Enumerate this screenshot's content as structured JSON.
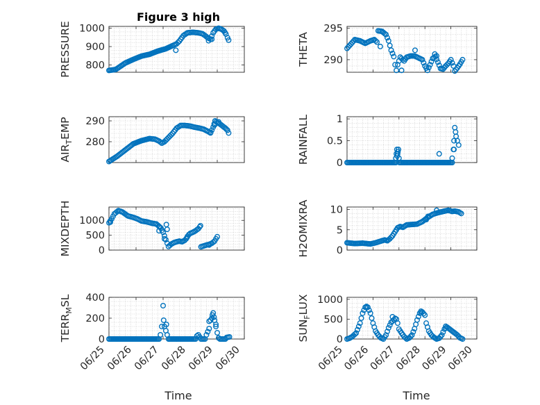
{
  "figure": {
    "title": "Figure 3 high",
    "marker_color": "#0072BD",
    "x_axis": {
      "label": "Time",
      "ticks": [
        "06/25",
        "06/26",
        "06/27",
        "06/28",
        "06/29",
        "06/30"
      ]
    }
  },
  "chart_data": [
    {
      "type": "scatter",
      "name": "PRESSURE",
      "ylabel": "PRESSURE",
      "xlim": [
        0,
        5
      ],
      "ylim": [
        760,
        1010
      ],
      "yticks": [
        800,
        900,
        1000
      ],
      "ytick_labels": [
        "800",
        "900",
        "1000"
      ],
      "keypoints": [
        [
          0,
          770
        ],
        [
          0.25,
          775
        ],
        [
          0.4,
          790
        ],
        [
          0.6,
          810
        ],
        [
          0.9,
          830
        ],
        [
          1.2,
          848
        ],
        [
          1.5,
          858
        ],
        [
          1.8,
          875
        ],
        [
          2.1,
          888
        ],
        [
          2.35,
          905
        ],
        [
          2.5,
          915
        ],
        [
          2.6,
          930
        ],
        [
          2.75,
          960
        ],
        [
          2.9,
          975
        ],
        [
          3.1,
          978
        ],
        [
          3.3,
          975
        ],
        [
          3.45,
          970
        ],
        [
          3.55,
          960
        ],
        [
          3.65,
          948
        ],
        [
          3.75,
          940
        ],
        [
          3.85,
          975
        ],
        [
          3.95,
          995
        ],
        [
          4.05,
          1000
        ],
        [
          4.15,
          995
        ],
        [
          4.25,
          985
        ],
        [
          4.32,
          968
        ],
        [
          4.38,
          948
        ],
        [
          4.42,
          935
        ]
      ],
      "extra_points": [
        [
          2.47,
          880
        ],
        [
          3.68,
          932
        ],
        [
          3.8,
          940
        ]
      ]
    },
    {
      "type": "scatter",
      "name": "THETA",
      "ylabel": "THETA",
      "xlim": [
        0,
        5
      ],
      "ylim": [
        288,
        295.3
      ],
      "yticks": [
        290,
        295
      ],
      "ytick_labels": [
        "290",
        "295"
      ],
      "keypoints": [
        [
          0,
          291.8
        ],
        [
          0.15,
          292.5
        ],
        [
          0.3,
          293.2
        ],
        [
          0.5,
          293
        ],
        [
          0.7,
          292.6
        ],
        [
          0.9,
          293
        ],
        [
          1.05,
          293.2
        ],
        [
          1.15,
          292.8
        ],
        [
          1.2,
          294.6
        ],
        [
          1.35,
          294.5
        ],
        [
          1.5,
          294
        ],
        [
          1.6,
          293
        ],
        [
          1.7,
          291.5
        ],
        [
          1.8,
          290.5
        ],
        [
          1.85,
          289.2
        ],
        [
          1.9,
          288.3
        ],
        [
          1.95,
          289.2
        ],
        [
          2.05,
          290.4
        ],
        [
          2.2,
          289.8
        ],
        [
          2.3,
          290.4
        ],
        [
          2.45,
          290.6
        ],
        [
          2.6,
          290.6
        ],
        [
          2.75,
          290.3
        ],
        [
          2.9,
          290
        ],
        [
          3.0,
          289
        ],
        [
          3.1,
          288.3
        ],
        [
          3.2,
          289.2
        ],
        [
          3.3,
          290.2
        ],
        [
          3.4,
          290.5
        ],
        [
          3.5,
          289.6
        ],
        [
          3.6,
          288.6
        ],
        [
          3.7,
          288.5
        ],
        [
          3.8,
          289
        ],
        [
          3.9,
          289.4
        ],
        [
          4.0,
          290
        ],
        [
          4.1,
          289
        ],
        [
          4.15,
          288.2
        ],
        [
          4.25,
          288.7
        ],
        [
          4.35,
          289.3
        ],
        [
          4.45,
          290
        ]
      ],
      "extra_points": [
        [
          1.28,
          292.1
        ],
        [
          2.1,
          288.3
        ],
        [
          2.62,
          291.5
        ],
        [
          3.38,
          290.9
        ],
        [
          3.45,
          290.6
        ]
      ]
    },
    {
      "type": "scatter",
      "name": "AIR_TEMP",
      "ylabel": "AIR_TEMP",
      "xlim": [
        0,
        5
      ],
      "ylim": [
        270,
        292
      ],
      "yticks": [
        280,
        290
      ],
      "ytick_labels": [
        "280",
        "290"
      ],
      "keypoints": [
        [
          0,
          270.5
        ],
        [
          0.3,
          273
        ],
        [
          0.6,
          276
        ],
        [
          0.9,
          279
        ],
        [
          1.2,
          280.5
        ],
        [
          1.5,
          281.5
        ],
        [
          1.7,
          281.2
        ],
        [
          1.85,
          280.3
        ],
        [
          1.95,
          279.3
        ],
        [
          2.05,
          280
        ],
        [
          2.2,
          282
        ],
        [
          2.35,
          284
        ],
        [
          2.5,
          286.5
        ],
        [
          2.65,
          287.8
        ],
        [
          2.8,
          287.8
        ],
        [
          3.0,
          287.5
        ],
        [
          3.15,
          287
        ],
        [
          3.35,
          286.5
        ],
        [
          3.5,
          286
        ],
        [
          3.65,
          285
        ],
        [
          3.75,
          284.2
        ],
        [
          3.85,
          287
        ],
        [
          3.92,
          290
        ],
        [
          4.0,
          289.2
        ],
        [
          4.1,
          288.5
        ],
        [
          4.2,
          287.5
        ],
        [
          4.3,
          286.5
        ],
        [
          4.38,
          285.5
        ],
        [
          4.42,
          284.2
        ]
      ],
      "extra_points": [
        [
          3.76,
          284.5
        ],
        [
          3.9,
          288
        ],
        [
          4.05,
          289.5
        ]
      ]
    },
    {
      "type": "scatter",
      "name": "MIXDEPTH",
      "ylabel": "MIXDEPTH",
      "xlim": [
        0,
        5
      ],
      "ylim": [
        0,
        1450
      ],
      "yticks": [
        0,
        500,
        1000
      ],
      "ytick_labels": [
        "0",
        "500",
        "1000"
      ],
      "keypoints": [
        [
          0,
          920
        ],
        [
          0.1,
          1050
        ],
        [
          0.2,
          1220
        ],
        [
          0.35,
          1330
        ],
        [
          0.5,
          1280
        ],
        [
          0.7,
          1150
        ],
        [
          0.9,
          1100
        ],
        [
          1.05,
          1050
        ],
        [
          1.2,
          980
        ],
        [
          1.4,
          950
        ],
        [
          1.6,
          900
        ],
        [
          1.75,
          880
        ],
        [
          1.85,
          800
        ],
        [
          1.92,
          740
        ],
        [
          2.0,
          600
        ],
        [
          2.05,
          480
        ],
        [
          2.1,
          350
        ],
        [
          2.15,
          230
        ],
        [
          2.2,
          120
        ],
        [
          2.3,
          200
        ],
        [
          2.4,
          250
        ],
        [
          2.5,
          280
        ],
        [
          2.6,
          300
        ],
        [
          2.7,
          280
        ],
        [
          2.8,
          330
        ],
        [
          2.85,
          380
        ],
        [
          2.88,
          420
        ],
        [
          2.9,
          460
        ],
        [
          2.95,
          520
        ],
        [
          3.0,
          560
        ],
        [
          3.1,
          600
        ],
        [
          3.2,
          650
        ],
        [
          3.3,
          720
        ],
        [
          3.35,
          780
        ],
        [
          3.38,
          820
        ],
        [
          3.4,
          110
        ],
        [
          3.5,
          140
        ],
        [
          3.6,
          170
        ],
        [
          3.7,
          190
        ],
        [
          3.8,
          230
        ],
        [
          3.9,
          300
        ],
        [
          3.95,
          380
        ],
        [
          4.0,
          450
        ]
      ],
      "extra_points": [
        [
          0.05,
          940
        ],
        [
          2.12,
          860
        ],
        [
          2.15,
          700
        ],
        [
          2.05,
          380
        ],
        [
          1.85,
          650
        ],
        [
          3.7,
          170
        ]
      ]
    },
    {
      "type": "scatter",
      "name": "H2OMIXRA",
      "ylabel": "H2OMIXRA",
      "xlim": [
        0,
        5
      ],
      "ylim": [
        0,
        10.6
      ],
      "yticks": [
        0,
        5,
        10
      ],
      "ytick_labels": [
        "0",
        "5",
        "10"
      ],
      "keypoints": [
        [
          0,
          1.8
        ],
        [
          0.3,
          1.6
        ],
        [
          0.6,
          1.7
        ],
        [
          0.9,
          1.5
        ],
        [
          1.1,
          1.8
        ],
        [
          1.3,
          2.2
        ],
        [
          1.45,
          2.5
        ],
        [
          1.55,
          2.3
        ],
        [
          1.65,
          2.8
        ],
        [
          1.75,
          3.5
        ],
        [
          1.85,
          4.5
        ],
        [
          1.95,
          5.5
        ],
        [
          2.05,
          5.8
        ],
        [
          2.15,
          5.6
        ],
        [
          2.3,
          6.2
        ],
        [
          2.5,
          6.3
        ],
        [
          2.7,
          6.4
        ],
        [
          2.9,
          7.0
        ],
        [
          3.1,
          8.0
        ],
        [
          3.3,
          8.8
        ],
        [
          3.5,
          9.2
        ],
        [
          3.7,
          9.5
        ],
        [
          3.9,
          9.8
        ],
        [
          4.05,
          9.5
        ],
        [
          4.15,
          9.6
        ],
        [
          4.3,
          9.4
        ],
        [
          4.4,
          9.0
        ]
      ],
      "extra_points": [
        [
          3.05,
          7.5
        ],
        [
          3.12,
          8.3
        ],
        [
          3.45,
          9.8
        ],
        [
          3.75,
          9.6
        ]
      ]
    },
    {
      "type": "scatter",
      "name": "RAINFALL",
      "ylabel": "RAINFALL",
      "xlim": [
        0,
        5
      ],
      "ylim": [
        0,
        1.05
      ],
      "yticks": [
        0,
        0.5,
        1
      ],
      "ytick_labels": [
        "0",
        "0.5",
        "1"
      ],
      "keypoints": [
        [
          0,
          0
        ],
        [
          1.88,
          0
        ],
        [
          1.88,
          0.1
        ],
        [
          1.9,
          0.2
        ],
        [
          1.92,
          0.3
        ],
        [
          1.95,
          0.2
        ],
        [
          1.98,
          0.3
        ],
        [
          2.0,
          0.1
        ],
        [
          2.02,
          0
        ],
        [
          4.05,
          0
        ],
        [
          4.05,
          0.1
        ],
        [
          4.1,
          0.3
        ],
        [
          4.12,
          0.5
        ],
        [
          4.15,
          0.8
        ],
        [
          4.18,
          0.7
        ],
        [
          4.2,
          0.6
        ],
        [
          4.25,
          0.5
        ],
        [
          4.3,
          0.4
        ]
      ],
      "extra_points": [
        [
          3.55,
          0.2
        ],
        [
          1.93,
          0.15
        ],
        [
          1.96,
          0.25
        ],
        [
          4.12,
          0.3
        ]
      ]
    },
    {
      "type": "scatter",
      "name": "TERR_MSL",
      "ylabel": "TERR_MSL",
      "xlim": [
        0,
        5
      ],
      "ylim": [
        0,
        400
      ],
      "yticks": [
        0,
        200,
        400
      ],
      "ytick_labels": [
        "0",
        "200",
        "400"
      ],
      "keypoints": [
        [
          0,
          0
        ],
        [
          1.85,
          0
        ],
        [
          1.9,
          40
        ],
        [
          1.95,
          120
        ],
        [
          2.0,
          320
        ],
        [
          2.02,
          180
        ],
        [
          2.05,
          120
        ],
        [
          2.1,
          80
        ],
        [
          2.15,
          40
        ],
        [
          2.2,
          0
        ],
        [
          3.2,
          0
        ],
        [
          3.25,
          30
        ],
        [
          3.3,
          40
        ],
        [
          3.35,
          20
        ],
        [
          3.4,
          0
        ],
        [
          3.55,
          0
        ],
        [
          3.6,
          40
        ],
        [
          3.7,
          100
        ],
        [
          3.75,
          180
        ],
        [
          3.8,
          200
        ],
        [
          3.85,
          250
        ],
        [
          3.9,
          180
        ],
        [
          3.95,
          120
        ],
        [
          4.0,
          60
        ],
        [
          4.05,
          10
        ],
        [
          4.1,
          0
        ],
        [
          4.3,
          0
        ],
        [
          4.35,
          15
        ],
        [
          4.45,
          20
        ]
      ],
      "extra_points": [
        [
          2.12,
          140
        ],
        [
          3.7,
          170
        ],
        [
          3.82,
          230
        ],
        [
          3.88,
          210
        ],
        [
          3.95,
          140
        ]
      ]
    },
    {
      "type": "scatter",
      "name": "SUN_FLUX",
      "ylabel": "SUN_FLUX",
      "xlim": [
        0,
        5
      ],
      "ylim": [
        0,
        1050
      ],
      "yticks": [
        0,
        500,
        1000
      ],
      "ytick_labels": [
        "0",
        "500",
        "1000"
      ],
      "keypoints": [
        [
          0,
          0
        ],
        [
          0.1,
          20
        ],
        [
          0.2,
          60
        ],
        [
          0.35,
          150
        ],
        [
          0.5,
          400
        ],
        [
          0.6,
          650
        ],
        [
          0.7,
          800
        ],
        [
          0.8,
          800
        ],
        [
          0.9,
          650
        ],
        [
          1.0,
          400
        ],
        [
          1.1,
          200
        ],
        [
          1.2,
          100
        ],
        [
          1.3,
          30
        ],
        [
          1.4,
          0
        ],
        [
          1.5,
          100
        ],
        [
          1.6,
          280
        ],
        [
          1.7,
          420
        ],
        [
          1.8,
          480
        ],
        [
          1.85,
          520
        ],
        [
          1.9,
          500
        ],
        [
          1.95,
          400
        ],
        [
          2.0,
          250
        ],
        [
          2.1,
          150
        ],
        [
          2.2,
          60
        ],
        [
          2.3,
          0
        ],
        [
          2.4,
          30
        ],
        [
          2.5,
          100
        ],
        [
          2.6,
          260
        ],
        [
          2.7,
          480
        ],
        [
          2.8,
          650
        ],
        [
          2.9,
          680
        ],
        [
          3.0,
          600
        ],
        [
          3.05,
          400
        ],
        [
          3.15,
          200
        ],
        [
          3.25,
          100
        ],
        [
          3.35,
          40
        ],
        [
          3.45,
          0
        ],
        [
          3.55,
          20
        ],
        [
          3.65,
          100
        ],
        [
          3.75,
          250
        ],
        [
          3.85,
          300
        ],
        [
          3.95,
          250
        ],
        [
          4.05,
          200
        ],
        [
          4.15,
          150
        ],
        [
          4.25,
          100
        ],
        [
          4.35,
          30
        ],
        [
          4.45,
          0
        ]
      ],
      "extra_points": [
        [
          0.75,
          820
        ],
        [
          1.75,
          560
        ],
        [
          2.85,
          700
        ],
        [
          3.8,
          320
        ]
      ]
    }
  ]
}
